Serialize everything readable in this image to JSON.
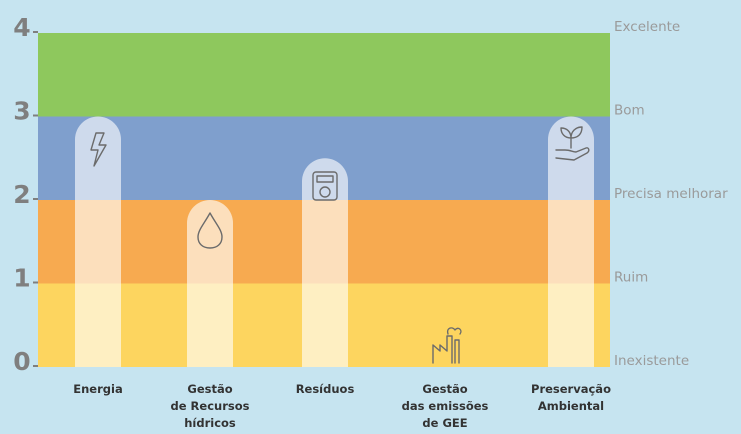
{
  "chart_data": {
    "type": "bar",
    "categories": [
      [
        "Energia"
      ],
      [
        "Gestão",
        "de Recursos",
        "hídricos"
      ],
      [
        "Resíduos"
      ],
      [
        "Gestão",
        "das emissões",
        "de GEE"
      ],
      [
        "Preservação",
        "Ambiental"
      ]
    ],
    "values": [
      3,
      2,
      2.5,
      0,
      3
    ],
    "color": "#ffffff",
    "ylim": [
      0,
      4
    ],
    "yticks": [
      0,
      1,
      2,
      3,
      4
    ],
    "ytick_levels": [
      "Inexistente",
      "Ruim",
      "Precisa melhorar",
      "Bom",
      "Excelente"
    ],
    "band_colors": [
      "#fdd55f",
      "#f7aa50",
      "#7f9fcd",
      "#8ec85d"
    ]
  }
}
